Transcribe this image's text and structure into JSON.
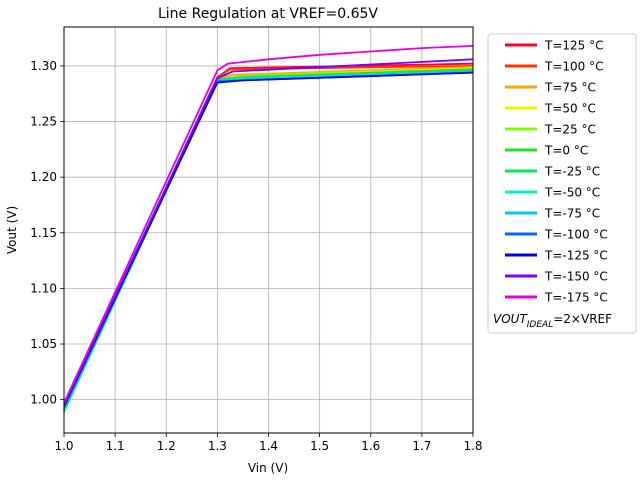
{
  "chart_data": {
    "type": "line",
    "title": "Line Regulation at VREF=0.65V",
    "xlabel": "Vin (V)",
    "ylabel": "Vout (V)",
    "xlim": [
      1.0,
      1.8
    ],
    "ylim": [
      0.97,
      1.335
    ],
    "x_ticks": [
      "1.0",
      "1.1",
      "1.2",
      "1.3",
      "1.4",
      "1.5",
      "1.6",
      "1.7",
      "1.8"
    ],
    "y_ticks": [
      "1.00",
      "1.05",
      "1.10",
      "1.15",
      "1.20",
      "1.25",
      "1.30"
    ],
    "grid": true,
    "legend_position": "outside-right",
    "legend_note": {
      "main": "VOUT",
      "sub": "IDEAL",
      "rest": "=2×VREF"
    },
    "series": [
      {
        "name": "T=125 °C",
        "color": "#ff0028",
        "x": [
          1.0,
          1.3,
          1.325,
          1.8
        ],
        "y": [
          0.991,
          1.29,
          1.298,
          1.302
        ]
      },
      {
        "name": "T=100 °C",
        "color": "#ff3300",
        "x": [
          1.0,
          1.3,
          1.325,
          1.8
        ],
        "y": [
          0.991,
          1.29,
          1.297,
          1.3
        ]
      },
      {
        "name": "T=75 °C",
        "color": "#ffa500",
        "x": [
          1.0,
          1.3,
          1.33,
          1.8
        ],
        "y": [
          0.991,
          1.289,
          1.292,
          1.299
        ]
      },
      {
        "name": "T=50 °C",
        "color": "#f0f000",
        "x": [
          1.0,
          1.3,
          1.35,
          1.8
        ],
        "y": [
          0.99,
          1.288,
          1.291,
          1.298
        ]
      },
      {
        "name": "T=25 °C",
        "color": "#7fff00",
        "x": [
          1.0,
          1.3,
          1.35,
          1.8
        ],
        "y": [
          0.989,
          1.288,
          1.291,
          1.297
        ]
      },
      {
        "name": "T=0 °C",
        "color": "#20e020",
        "x": [
          1.0,
          1.3,
          1.35,
          1.8
        ],
        "y": [
          0.989,
          1.288,
          1.29,
          1.297
        ]
      },
      {
        "name": "T=-25 °C",
        "color": "#00ee55",
        "x": [
          1.0,
          1.3,
          1.35,
          1.8
        ],
        "y": [
          0.99,
          1.287,
          1.289,
          1.296
        ]
      },
      {
        "name": "T=-50 °C",
        "color": "#00f0c8",
        "x": [
          1.0,
          1.3,
          1.35,
          1.8
        ],
        "y": [
          0.991,
          1.287,
          1.289,
          1.295
        ]
      },
      {
        "name": "T=-75 °C",
        "color": "#00c8f0",
        "x": [
          1.0,
          1.3,
          1.35,
          1.8
        ],
        "y": [
          0.992,
          1.287,
          1.288,
          1.295
        ]
      },
      {
        "name": "T=-100 °C",
        "color": "#0066ff",
        "x": [
          1.0,
          1.3,
          1.35,
          1.8
        ],
        "y": [
          0.993,
          1.286,
          1.287,
          1.294
        ]
      },
      {
        "name": "T=-125 °C",
        "color": "#0000e0",
        "x": [
          1.0,
          1.3,
          1.35,
          1.8
        ],
        "y": [
          0.994,
          1.285,
          1.287,
          1.294
        ]
      },
      {
        "name": "T=-150 °C",
        "color": "#7a00ff",
        "x": [
          1.0,
          1.3,
          1.33,
          1.8
        ],
        "y": [
          0.995,
          1.289,
          1.295,
          1.306
        ]
      },
      {
        "name": "T=-175 °C",
        "color": "#e000e0",
        "x": [
          1.0,
          1.3,
          1.32,
          1.4,
          1.5,
          1.6,
          1.7,
          1.8
        ],
        "y": [
          0.997,
          1.296,
          1.302,
          1.306,
          1.31,
          1.313,
          1.316,
          1.318
        ]
      }
    ]
  }
}
